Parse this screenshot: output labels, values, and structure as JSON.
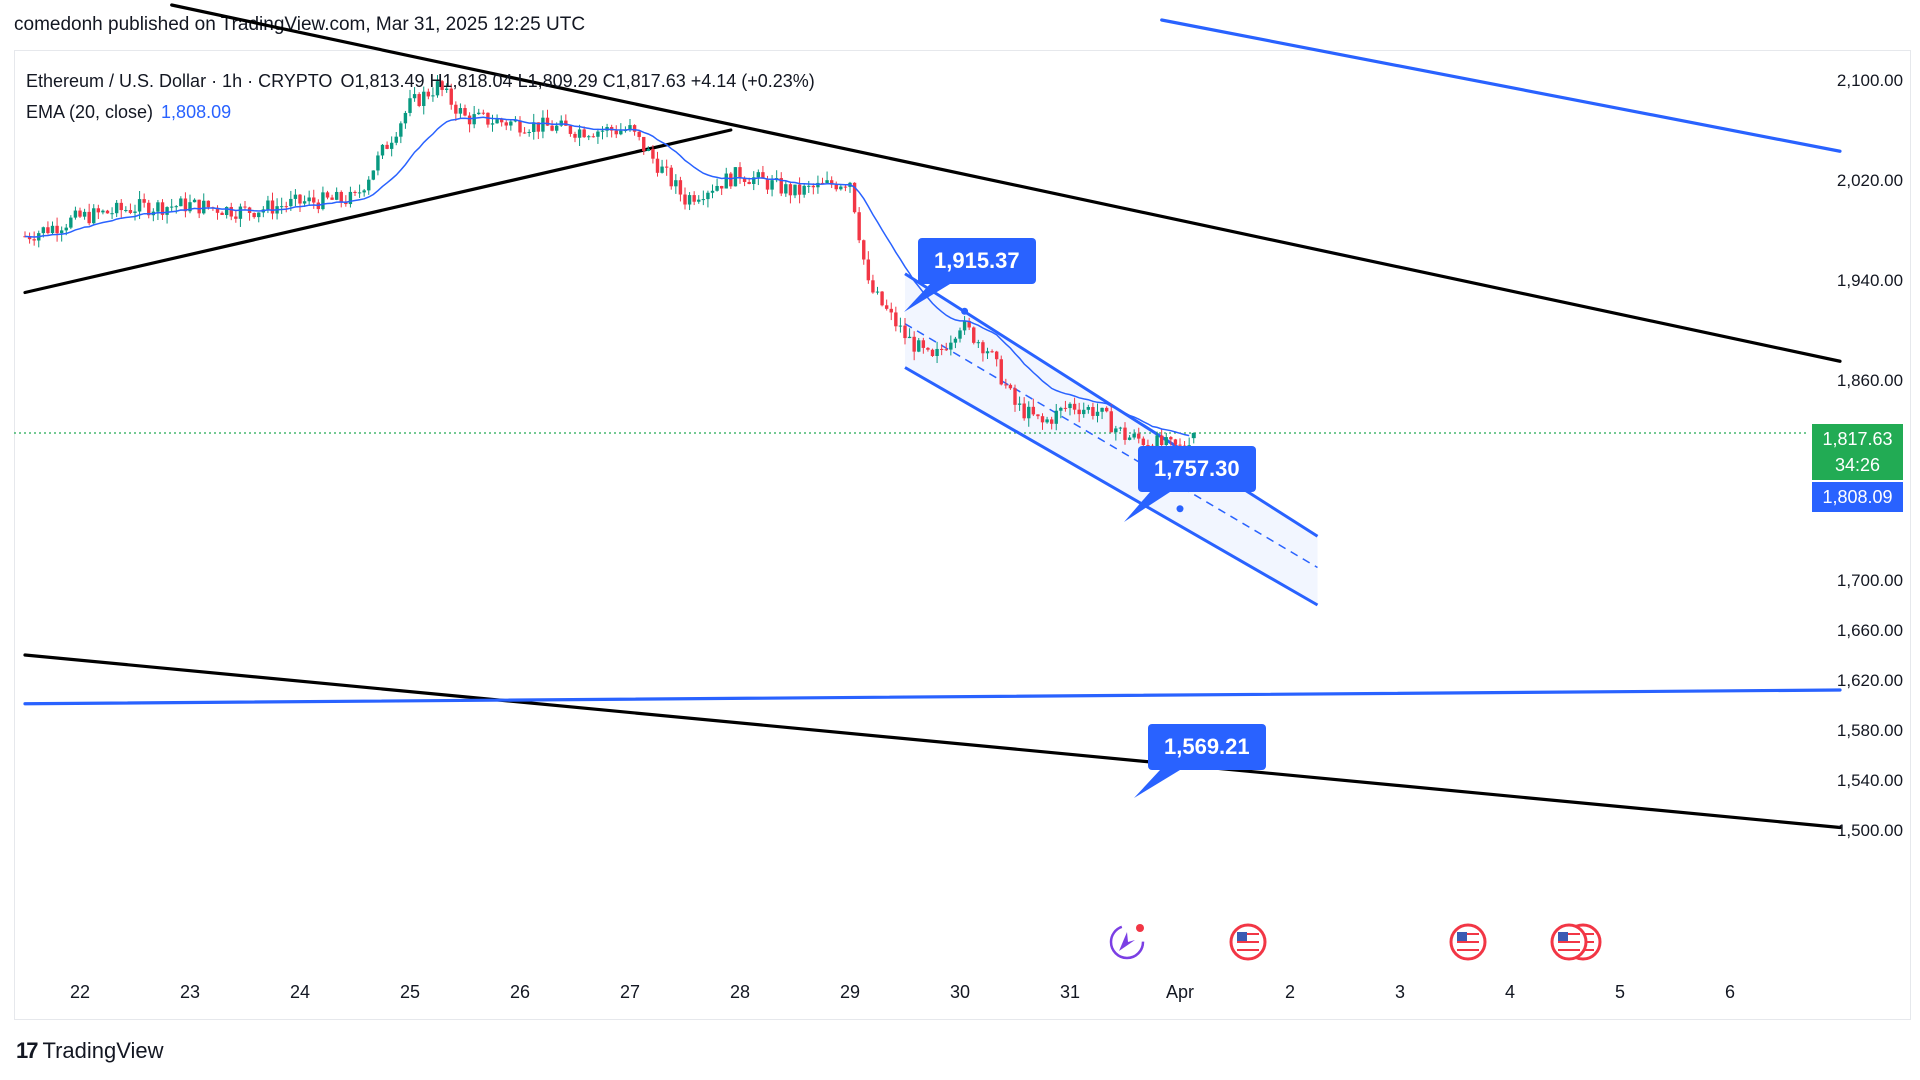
{
  "header": {
    "published_line": "comedonh published on TradingView.com, Mar 31, 2025 12:25 UTC"
  },
  "legend": {
    "symbol_line": "Ethereum / U.S. Dollar · 1h · CRYPTO",
    "ohlc": "O1,813.49  H1,818.04  L1,809.29  C1,817.63  +4.14 (+0.23%)",
    "ema_label": "EMA (20, close)",
    "ema_value": "1,808.09"
  },
  "price_axis": {
    "ticks": [
      "2,100.00",
      "2,020.00",
      "1,940.00",
      "1,860.00",
      "1,700.00",
      "1,660.00",
      "1,620.00",
      "1,580.00",
      "1,540.00",
      "1,500.00"
    ],
    "last_price": "1,817.63",
    "countdown": "34:26",
    "ema_tag": "1,808.09"
  },
  "time_axis": {
    "ticks": [
      "22",
      "23",
      "24",
      "25",
      "26",
      "27",
      "28",
      "29",
      "30",
      "31",
      "Apr",
      "2",
      "3",
      "4",
      "5",
      "6"
    ]
  },
  "callouts": [
    "1,915.37",
    "1,757.30",
    "1,569.21"
  ],
  "footer": {
    "brand": "TradingView",
    "mark": "17"
  },
  "colors": {
    "up": "#089981",
    "down": "#f23645",
    "ema": "#2962ff",
    "trendline": "#000000",
    "channel": "#2962ff",
    "last_price": "#22ab54"
  },
  "chart_data": {
    "type": "candlestick",
    "title": "Ethereum / U.S. Dollar · 1h · CRYPTO",
    "interval": "1h",
    "x_range": [
      "2025-03-21",
      "2025-04-06"
    ],
    "ylim": [
      1480,
      2130
    ],
    "close_path": [
      {
        "t": "2025-03-21 12:00",
        "close": 1975
      },
      {
        "t": "2025-03-22 00:00",
        "close": 1990
      },
      {
        "t": "2025-03-22 12:00",
        "close": 1998
      },
      {
        "t": "2025-03-23 00:00",
        "close": 2000
      },
      {
        "t": "2025-03-23 12:00",
        "close": 1995
      },
      {
        "t": "2025-03-24 00:00",
        "close": 2002
      },
      {
        "t": "2025-03-24 12:00",
        "close": 2005
      },
      {
        "t": "2025-03-25 00:00",
        "close": 2080
      },
      {
        "t": "2025-03-25 06:00",
        "close": 2095
      },
      {
        "t": "2025-03-25 12:00",
        "close": 2070
      },
      {
        "t": "2025-03-26 00:00",
        "close": 2065
      },
      {
        "t": "2025-03-26 12:00",
        "close": 2060
      },
      {
        "t": "2025-03-27 00:00",
        "close": 2060
      },
      {
        "t": "2025-03-27 12:00",
        "close": 2005
      },
      {
        "t": "2025-03-28 00:00",
        "close": 2025
      },
      {
        "t": "2025-03-28 12:00",
        "close": 2010
      },
      {
        "t": "2025-03-29 00:00",
        "close": 2020
      },
      {
        "t": "2025-03-29 04:00",
        "close": 1935
      },
      {
        "t": "2025-03-29 12:00",
        "close": 1895
      },
      {
        "t": "2025-03-29 18:00",
        "close": 1875
      },
      {
        "t": "2025-03-30 00:00",
        "close": 1905
      },
      {
        "t": "2025-03-30 06:00",
        "close": 1885
      },
      {
        "t": "2025-03-30 12:00",
        "close": 1840
      },
      {
        "t": "2025-03-30 18:00",
        "close": 1825
      },
      {
        "t": "2025-03-31 00:00",
        "close": 1840
      },
      {
        "t": "2025-03-31 06:00",
        "close": 1835
      },
      {
        "t": "2025-03-31 12:00",
        "close": 1815
      },
      {
        "t": "2025-03-31 18:00",
        "close": 1810
      },
      {
        "t": "2025-04-01 00:00",
        "close": 1805
      },
      {
        "t": "2025-04-01 03:00",
        "close": 1817.63
      }
    ],
    "last_candle": {
      "open": 1813.49,
      "high": 1818.04,
      "low": 1809.29,
      "close": 1817.63,
      "change": 4.14,
      "change_pct": 0.23
    },
    "ema": {
      "name": "EMA (20, close)",
      "last": 1808.09
    },
    "annotations": [
      {
        "type": "trendline",
        "color": "black",
        "from": {
          "t": "2025-03-21 12:00",
          "price": 1930
        },
        "to": {
          "t": "2025-03-27 22:00",
          "price": 2060
        }
      },
      {
        "type": "trendline",
        "color": "black",
        "from": {
          "t": "2025-03-22 20:00",
          "price": 2160
        },
        "to": {
          "t": "2025-04-07 00:00",
          "price": 1875
        }
      },
      {
        "type": "trendline",
        "color": "black",
        "from": {
          "t": "2025-03-21 12:00",
          "price": 1640
        },
        "to": {
          "t": "2025-04-07 00:00",
          "price": 1502
        }
      },
      {
        "type": "trendline",
        "color": "blue",
        "from": {
          "t": "2025-03-21 12:00",
          "price": 1601
        },
        "to": {
          "t": "2025-04-07 00:00",
          "price": 1612
        }
      },
      {
        "type": "trendline",
        "color": "blue",
        "from": {
          "t": "2025-03-31 20:00",
          "price": 2148
        },
        "to": {
          "t": "2025-04-07 00:00",
          "price": 2043
        }
      },
      {
        "type": "channel",
        "color": "blue",
        "upper": {
          "from": {
            "t": "2025-03-29 12:00",
            "price": 1945
          },
          "to": {
            "t": "2025-04-02 06:00",
            "price": 1735
          }
        },
        "middle": {
          "from": {
            "t": "2025-03-29 12:00",
            "price": 1905
          },
          "to": {
            "t": "2025-04-02 06:00",
            "price": 1710
          }
        },
        "lower": {
          "from": {
            "t": "2025-03-29 12:00",
            "price": 1870
          },
          "to": {
            "t": "2025-04-02 06:00",
            "price": 1680
          }
        }
      },
      {
        "type": "price_label",
        "text": "1,915.37",
        "anchor": {
          "t": "2025-03-30 01:00",
          "price": 1915
        }
      },
      {
        "type": "price_label",
        "text": "1,757.30",
        "anchor": {
          "t": "2025-04-01 00:00",
          "price": 1757
        }
      },
      {
        "type": "price_label",
        "text": "1,569.21",
        "anchor": {
          "t": "2025-04-01 00:00",
          "price": 1569
        }
      }
    ],
    "event_icons": [
      "ai-spark-icon",
      "us-flag-icon",
      "us-flag-icon",
      "us-flag-icon"
    ]
  }
}
